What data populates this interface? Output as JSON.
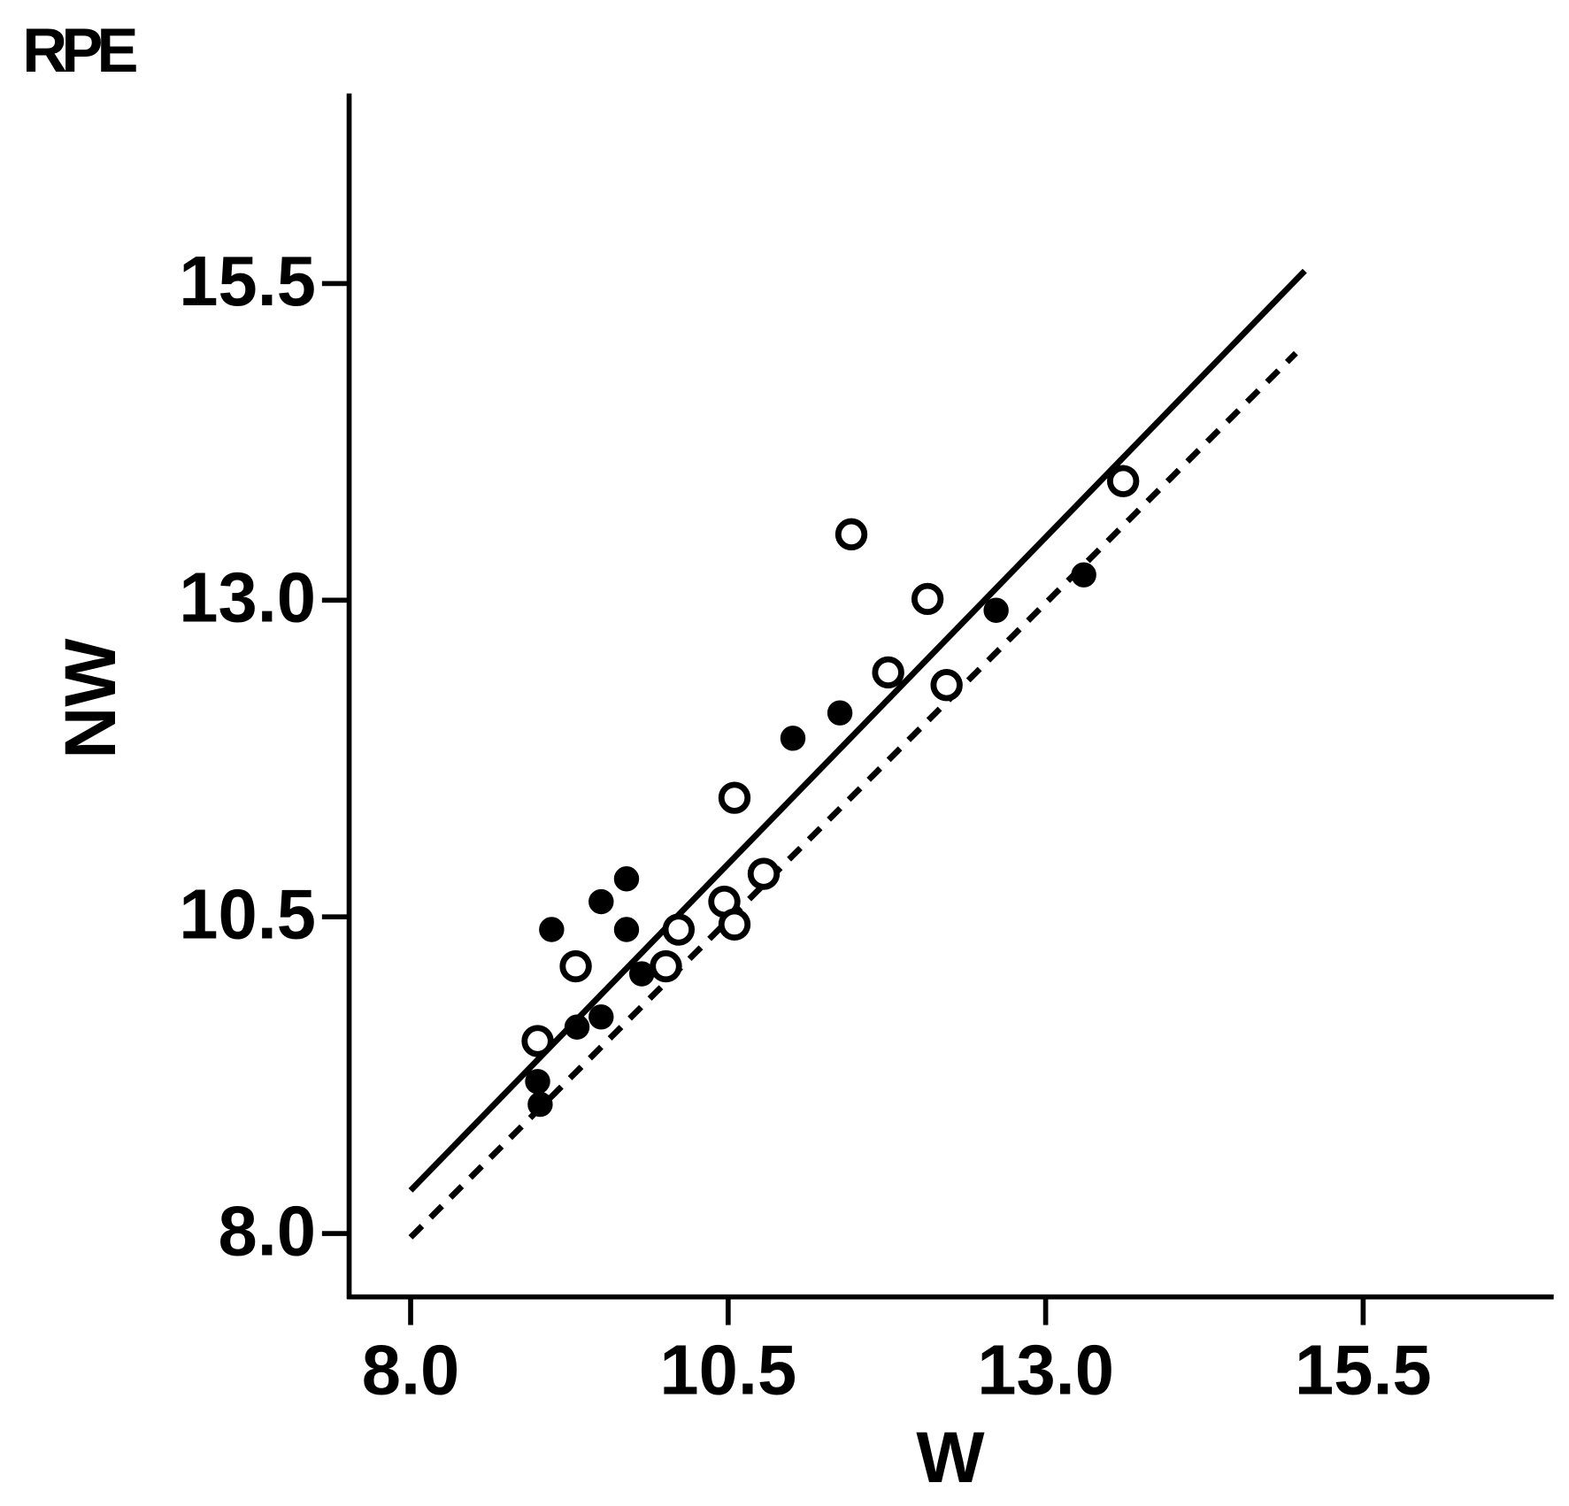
{
  "chart_data": {
    "type": "scatter",
    "panel_label": "RPE",
    "x_label": "W",
    "y_label": "NW",
    "xlim": [
      7.5,
      17.0
    ],
    "ylim": [
      7.5,
      17.0
    ],
    "xticks": [
      {
        "value": 8,
        "label": "8.0"
      },
      {
        "value": 10.5,
        "label": "10.5"
      },
      {
        "value": 13,
        "label": "13.0"
      },
      {
        "value": 15.5,
        "label": "15.5"
      }
    ],
    "yticks": [
      {
        "value": 8,
        "label": "8.0"
      },
      {
        "value": 10.5,
        "label": "10.5"
      },
      {
        "value": 13,
        "label": "13.0"
      },
      {
        "value": 15.5,
        "label": "15.5"
      }
    ],
    "grid": false,
    "series": [
      {
        "marker": "filled",
        "color": "#000000",
        "x": [
          9.0,
          9.02,
          9.11,
          9.31,
          9.5,
          9.5,
          9.7,
          9.7,
          9.82,
          11.01,
          11.38,
          12.61,
          13.3
        ],
        "values": [
          9.2,
          9.02,
          10.4,
          9.63,
          9.71,
          10.62,
          10.8,
          10.4,
          10.05,
          11.91,
          12.11,
          12.92,
          13.2
        ]
      },
      {
        "marker": "open",
        "color": "#000000",
        "x": [
          9.0,
          9.3,
          10.01,
          10.11,
          10.47,
          10.55,
          10.55,
          10.78,
          11.47,
          11.76,
          12.07,
          12.22,
          13.61
        ],
        "values": [
          9.52,
          10.11,
          10.11,
          10.4,
          10.62,
          10.44,
          11.44,
          10.84,
          13.52,
          12.43,
          13.01,
          12.33,
          13.94
        ]
      }
    ],
    "lines": [
      {
        "style": "solid",
        "color": "#000000",
        "x": [
          8.0,
          15.04
        ],
        "values": [
          8.34,
          15.6
        ]
      },
      {
        "style": "dashed",
        "color": "#000000",
        "x": [
          8.0,
          14.97
        ],
        "values": [
          7.97,
          14.95
        ]
      }
    ]
  }
}
